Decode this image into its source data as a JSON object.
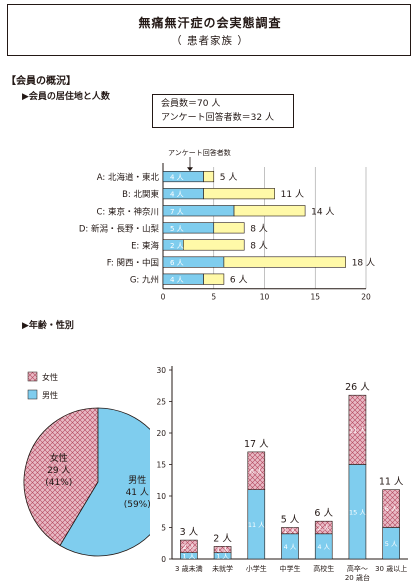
{
  "header": {
    "title": "無痛無汗症の会実態調査",
    "subtitle": "（ 患者家族 ）"
  },
  "section_overview": {
    "heading": "【会員の概況】",
    "subheading": "▶会員の居住地と人数",
    "summary_line1": "会員数＝70 人",
    "summary_line2": "アンケート回答者数＝32 人"
  },
  "section_age": {
    "subheading": "▶年齢・性別"
  },
  "colors": {
    "respondent_blue": "#7fcdee",
    "member_yellow": "#fff9a8",
    "female_pink": "#e8b9c4",
    "hatch": "#b4485f",
    "ink": "#231815"
  },
  "chart_data": [
    {
      "type": "bar",
      "orientation": "horizontal",
      "stacked": true,
      "categories": [
        "A: 北海道・東北",
        "B: 北関東",
        "C: 東京・神奈川",
        "D: 新潟・長野・山梨",
        "E: 東海",
        "F: 関西・中国",
        "G: 九州"
      ],
      "series": [
        {
          "name": "アンケート回答者数",
          "values": [
            4,
            4,
            7,
            5,
            2,
            6,
            4
          ],
          "labels": [
            "4 人",
            "4 人",
            "7 人",
            "5 人",
            "2 人",
            "6 人",
            "4 人"
          ]
        },
        {
          "values": [
            1,
            7,
            7,
            3,
            6,
            12,
            2
          ]
        }
      ],
      "totals": [
        5,
        11,
        14,
        8,
        8,
        18,
        6
      ],
      "total_labels": [
        "5 人",
        "11 人",
        "14 人",
        "8 人",
        "8 人",
        "18 人",
        "6 人"
      ],
      "annotation": "アンケート回答者数",
      "xlim": [
        0,
        20
      ],
      "xticks": [
        "0",
        "5",
        "10",
        "15",
        "20"
      ],
      "grid": true
    },
    {
      "type": "pie",
      "legend": [
        "女性",
        "男性"
      ],
      "slices": [
        {
          "name": "女性",
          "value": 29,
          "percent": 41,
          "label_name": "女性",
          "label_count": "29 人",
          "label_pct": "(41%)"
        },
        {
          "name": "男性",
          "value": 41,
          "percent": 59,
          "label_name": "男性",
          "label_count": "41 人",
          "label_pct": "(59%)"
        }
      ]
    },
    {
      "type": "bar",
      "stacked": true,
      "categories": [
        "3 歳未満",
        "未就学",
        "小学生",
        "中学生",
        "高校生",
        "高卒～\n20 歳台",
        "30 歳以上"
      ],
      "series": [
        {
          "name": "男性",
          "values": [
            1,
            1,
            11,
            4,
            4,
            15,
            5
          ],
          "labels": [
            "1 人",
            "1 人",
            "11 人",
            "4 人",
            "4 人",
            "15 人",
            "5 人"
          ]
        },
        {
          "name": "女性",
          "values": [
            2,
            1,
            6,
            1,
            2,
            11,
            6
          ],
          "labels": [
            "2 人",
            "1 人",
            "6 人",
            "1 人",
            "2 人",
            "11 人",
            "6 人"
          ]
        }
      ],
      "totals": [
        3,
        2,
        17,
        5,
        6,
        26,
        11
      ],
      "total_labels": [
        "3 人",
        "2 人",
        "17 人",
        "5 人",
        "6 人",
        "26 人",
        "11 人"
      ],
      "ylim": [
        0,
        30
      ],
      "yticks": [
        "0",
        "5",
        "10",
        "15",
        "20",
        "25",
        "30"
      ],
      "grid": false
    }
  ]
}
